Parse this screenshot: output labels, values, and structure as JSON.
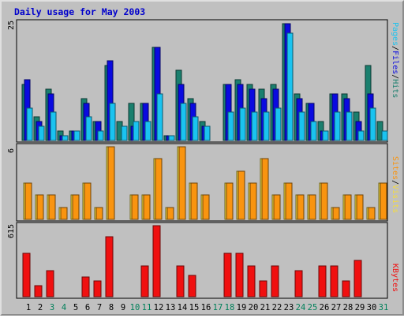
{
  "chart_data": [
    {
      "type": "bar",
      "title": "Daily usage for May 2003",
      "panel": "hits-files-pages",
      "ymax_label": "25",
      "categories": [
        "1",
        "2",
        "3",
        "4",
        "5",
        "6",
        "7",
        "8",
        "9",
        "10",
        "11",
        "12",
        "13",
        "14",
        "15",
        "16",
        "17",
        "18",
        "19",
        "20",
        "21",
        "22",
        "23",
        "24",
        "25",
        "26",
        "27",
        "28",
        "29",
        "30",
        "31"
      ],
      "series": [
        {
          "name": "Hits",
          "color": "#1a7f6e",
          "values": [
            12,
            5,
            11,
            2,
            2,
            9,
            4,
            16,
            4,
            8,
            8,
            20,
            1,
            15,
            9,
            4,
            0,
            12,
            13,
            12,
            11,
            12,
            25,
            10,
            8,
            4,
            10,
            10,
            6,
            16,
            4
          ]
        },
        {
          "name": "Files",
          "color": "#0a0ae0",
          "values": [
            13,
            4,
            10,
            1,
            2,
            8,
            4,
            17,
            0,
            3,
            8,
            20,
            1,
            12,
            8,
            3,
            0,
            12,
            12,
            11,
            9,
            11,
            25,
            9,
            8,
            2,
            10,
            9,
            4,
            10,
            0
          ]
        },
        {
          "name": "Pages",
          "color": "#1ac3f0",
          "values": [
            7,
            3,
            6,
            1,
            2,
            5,
            2,
            8,
            3,
            4,
            4,
            10,
            1,
            8,
            5,
            3,
            0,
            6,
            7,
            6,
            6,
            7,
            23,
            6,
            4,
            2,
            6,
            6,
            2,
            7,
            2
          ]
        }
      ],
      "right_label_parts": [
        "Pages",
        "/",
        "Files",
        "/",
        "Hits"
      ]
    },
    {
      "type": "bar",
      "panel": "visits-sites",
      "ymax_label": "6",
      "categories": [
        "1",
        "2",
        "3",
        "4",
        "5",
        "6",
        "7",
        "8",
        "9",
        "10",
        "11",
        "12",
        "13",
        "14",
        "15",
        "16",
        "17",
        "18",
        "19",
        "20",
        "21",
        "22",
        "23",
        "24",
        "25",
        "26",
        "27",
        "28",
        "29",
        "30",
        "31"
      ],
      "series": [
        {
          "name": "Visits",
          "color": "#f6dc3c",
          "values": [
            3,
            2,
            2,
            1,
            2,
            3,
            1,
            6,
            0,
            2,
            2,
            5,
            1,
            6,
            3,
            2,
            0,
            3,
            4,
            3,
            5,
            2,
            3,
            2,
            2,
            3,
            1,
            2,
            2,
            1,
            3
          ]
        },
        {
          "name": "Sites",
          "color": "#f99410",
          "values": [
            3,
            2,
            2,
            1,
            2,
            3,
            1,
            6,
            0,
            2,
            2,
            5,
            1,
            6,
            3,
            2,
            0,
            3,
            4,
            3,
            5,
            2,
            3,
            2,
            2,
            3,
            1,
            2,
            2,
            1,
            3
          ]
        }
      ],
      "right_label_parts": [
        "Sites",
        "/",
        "Visits"
      ]
    },
    {
      "type": "bar",
      "panel": "kbytes",
      "ymax_label": "615",
      "categories": [
        "1",
        "2",
        "3",
        "4",
        "5",
        "6",
        "7",
        "8",
        "9",
        "10",
        "11",
        "12",
        "13",
        "14",
        "15",
        "16",
        "17",
        "18",
        "19",
        "20",
        "21",
        "22",
        "23",
        "24",
        "25",
        "26",
        "27",
        "28",
        "29",
        "30",
        "31"
      ],
      "series": [
        {
          "name": "KBytes",
          "color": "#f01010",
          "values": [
            375,
            95,
            225,
            0,
            0,
            170,
            135,
            520,
            0,
            0,
            265,
            615,
            0,
            265,
            185,
            0,
            0,
            375,
            375,
            265,
            140,
            265,
            0,
            225,
            0,
            265,
            265,
            135,
            315,
            0,
            0
          ]
        }
      ],
      "right_label_parts": [
        "KBytes"
      ]
    }
  ],
  "weekend_days": [
    "3",
    "4",
    "10",
    "11",
    "17",
    "18",
    "24",
    "25",
    "31"
  ],
  "colors": {
    "frame": "#c0c0c0",
    "plot": "#c0c0c0",
    "title": "#0000cc",
    "weekday": "#000000",
    "weekend": "#00805a",
    "grid": "#aaaaaa"
  }
}
